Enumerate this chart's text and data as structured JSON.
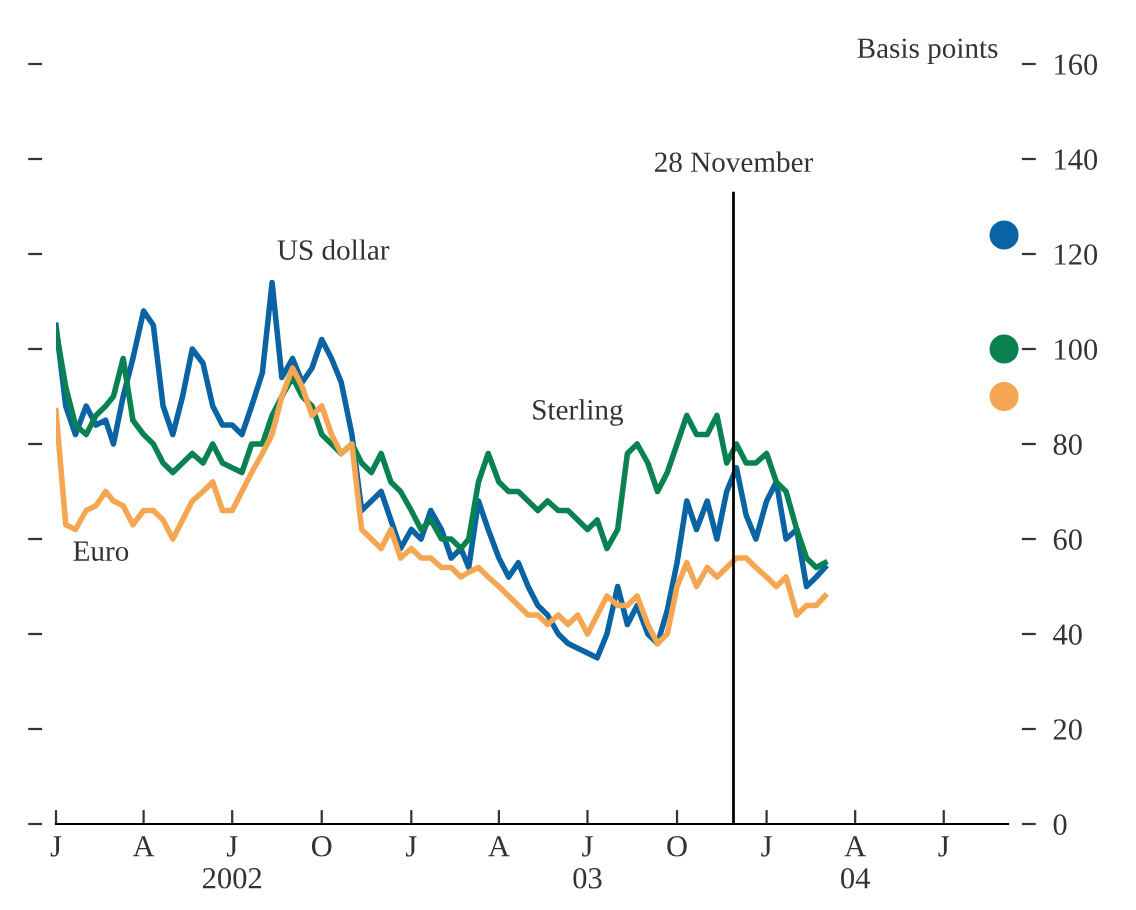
{
  "chart_data": {
    "type": "line",
    "ylabel": "Basis points",
    "x": [
      "2002-01-01",
      "2002-01-11",
      "2002-01-21",
      "2002-02-01",
      "2002-02-11",
      "2002-02-21",
      "2002-03-01",
      "2002-03-11",
      "2002-03-21",
      "2002-04-01",
      "2002-04-11",
      "2002-04-21",
      "2002-05-01",
      "2002-05-11",
      "2002-05-21",
      "2002-06-01",
      "2002-06-11",
      "2002-06-21",
      "2002-07-01",
      "2002-07-11",
      "2002-07-21",
      "2002-08-01",
      "2002-08-11",
      "2002-08-21",
      "2002-09-01",
      "2002-09-11",
      "2002-09-21",
      "2002-10-01",
      "2002-10-11",
      "2002-10-21",
      "2002-11-01",
      "2002-11-11",
      "2002-11-21",
      "2002-12-01",
      "2002-12-11",
      "2002-12-21",
      "2003-01-01",
      "2003-01-11",
      "2003-01-21",
      "2003-02-01",
      "2003-02-11",
      "2003-02-21",
      "2003-03-01",
      "2003-03-11",
      "2003-03-21",
      "2003-04-01",
      "2003-04-11",
      "2003-04-21",
      "2003-05-01",
      "2003-05-11",
      "2003-05-21",
      "2003-06-01",
      "2003-06-11",
      "2003-06-21",
      "2003-07-01",
      "2003-07-11",
      "2003-07-21",
      "2003-08-01",
      "2003-08-11",
      "2003-08-21",
      "2003-09-01",
      "2003-09-11",
      "2003-09-21",
      "2003-10-01",
      "2003-10-11",
      "2003-10-21",
      "2003-11-01",
      "2003-11-11",
      "2003-11-21",
      "2003-12-01",
      "2003-12-11",
      "2003-12-21",
      "2004-01-01",
      "2004-01-11",
      "2004-01-21",
      "2004-02-01",
      "2004-02-11",
      "2004-02-21",
      "2004-03-01"
    ],
    "series": [
      {
        "name": "US dollar",
        "color": "#0a64a4",
        "values": [
          105,
          88,
          82,
          88,
          84,
          85,
          80,
          90,
          98,
          108,
          105,
          88,
          82,
          90,
          100,
          97,
          88,
          84,
          84,
          82,
          88,
          95,
          114,
          94,
          98,
          93,
          96,
          102,
          98,
          93,
          82,
          66,
          68,
          70,
          64,
          58,
          62,
          60,
          66,
          62,
          56,
          58,
          54,
          68,
          62,
          56,
          52,
          55,
          50,
          46,
          44,
          40,
          38,
          37,
          36,
          35,
          40,
          50,
          42,
          46,
          40,
          38,
          45,
          55,
          68,
          62,
          68,
          60,
          70,
          75,
          65,
          60,
          68,
          72,
          60,
          62,
          50,
          52,
          54
        ]
      },
      {
        "name": "Sterling",
        "color": "#0a8150",
        "values": [
          104,
          92,
          84,
          82,
          86,
          88,
          90,
          98,
          85,
          82,
          80,
          76,
          74,
          76,
          78,
          76,
          80,
          76,
          75,
          74,
          80,
          80,
          86,
          90,
          94,
          90,
          88,
          82,
          80,
          78,
          80,
          76,
          74,
          78,
          72,
          70,
          66,
          62,
          64,
          60,
          60,
          58,
          60,
          72,
          78,
          72,
          70,
          70,
          68,
          66,
          68,
          66,
          66,
          64,
          62,
          64,
          58,
          62,
          78,
          80,
          76,
          70,
          74,
          80,
          86,
          82,
          82,
          86,
          76,
          80,
          76,
          76,
          78,
          72,
          70,
          62,
          56,
          54,
          55
        ]
      },
      {
        "name": "Euro",
        "color": "#f5a653",
        "values": [
          87,
          63,
          62,
          66,
          67,
          70,
          68,
          67,
          63,
          66,
          66,
          64,
          60,
          64,
          68,
          70,
          72,
          66,
          66,
          70,
          74,
          78,
          82,
          90,
          96,
          92,
          86,
          88,
          82,
          78,
          80,
          62,
          60,
          58,
          62,
          56,
          58,
          56,
          56,
          54,
          54,
          52,
          53,
          54,
          52,
          50,
          48,
          46,
          44,
          44,
          42,
          44,
          42,
          44,
          40,
          44,
          48,
          46,
          46,
          48,
          42,
          38,
          40,
          50,
          55,
          50,
          54,
          52,
          54,
          56,
          56,
          54,
          52,
          50,
          52,
          44,
          46,
          46,
          48
        ]
      },
      {
        "type": "scatter",
        "marker": "circle",
        "x": [
          "2004-09-01",
          "2004-09-01",
          "2004-09-01"
        ],
        "colors": [
          "#0a64a4",
          "#0a8150",
          "#f5a653"
        ],
        "values": [
          124,
          100,
          90
        ]
      }
    ],
    "xlim": [
      "2002-01-01",
      "2004-09-05"
    ],
    "xticks": [
      {
        "value": "2002-01-01",
        "label": "J"
      },
      {
        "value": "2002-04-01",
        "label": "A"
      },
      {
        "value": "2002-07-01",
        "label": "J\n2002"
      },
      {
        "value": "2002-10-01",
        "label": "O"
      },
      {
        "value": "2003-01-01",
        "label": "J"
      },
      {
        "value": "2003-04-01",
        "label": "A"
      },
      {
        "value": "2003-07-01",
        "label": "J\n03"
      },
      {
        "value": "2003-10-01",
        "label": "O"
      },
      {
        "value": "2004-01-01",
        "label": "J"
      },
      {
        "value": "2004-04-01",
        "label": "A\n04"
      },
      {
        "value": "2004-07-01",
        "label": "J"
      }
    ],
    "ylim": [
      0,
      160
    ],
    "yticks": [
      0,
      20,
      40,
      60,
      80,
      100,
      120,
      140,
      160
    ],
    "ref_lines": [
      {
        "axis": "x",
        "value": "2003-11-28",
        "label": "28 November",
        "color": "#000000"
      }
    ],
    "marker": "none",
    "line_style": "solid",
    "grid": false,
    "legend": false
  }
}
